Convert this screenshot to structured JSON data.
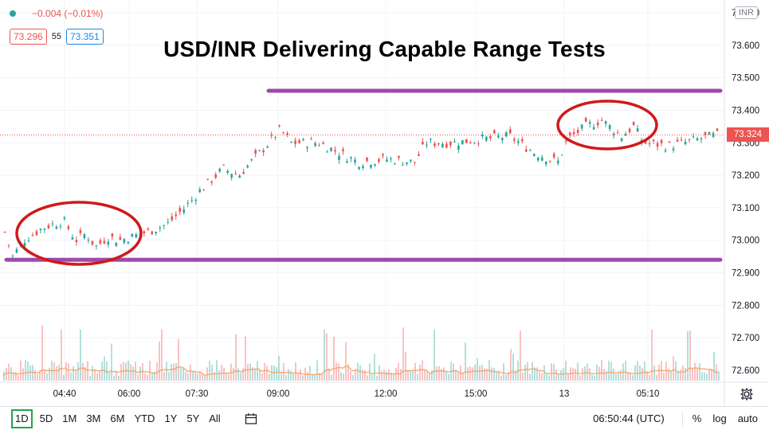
{
  "header": {
    "change": "−0.004 (−0.01%)",
    "bid": "73.296",
    "spread": "55",
    "ask": "73.351",
    "currency": "INR"
  },
  "title": "USD/INR Delivering Capable Range Tests",
  "last_price_label": "73.324",
  "colors": {
    "up": "#26a69a",
    "down": "#ef5350",
    "annotation_line": "#9c4bab",
    "annotation_circle": "#d01919",
    "volume_ma": "#f4a460"
  },
  "bottom_bar": {
    "ranges": [
      "1D",
      "5D",
      "1M",
      "3M",
      "6M",
      "YTD",
      "1Y",
      "5Y",
      "All"
    ],
    "active_range": "1D",
    "clock": "06:50:44 (UTC)",
    "options": [
      "%",
      "log",
      "auto"
    ]
  },
  "chart_data": {
    "type": "candlestick",
    "title": "USD/INR Delivering Capable Range Tests",
    "y_ticks": [
      72.6,
      72.7,
      72.8,
      72.9,
      73.0,
      73.1,
      73.2,
      73.3,
      73.4,
      73.5,
      73.6,
      73.7
    ],
    "y_tick_labels": [
      "72.600",
      "72.700",
      "72.800",
      "72.900",
      "73.000",
      "73.100",
      "73.200",
      "73.300",
      "73.400",
      "73.500",
      "73.600",
      "73.700"
    ],
    "ylim": [
      72.55,
      73.75
    ],
    "x_ticks": [
      "04:40",
      "06:00",
      "07:30",
      "09:00",
      "12:00",
      "15:00",
      "13",
      "05:10"
    ],
    "price_path": [
      {
        "t": "03:45",
        "p": 73.04
      },
      {
        "t": "04:00",
        "p": 72.95
      },
      {
        "t": "04:10",
        "p": 73.0
      },
      {
        "t": "04:25",
        "p": 73.04
      },
      {
        "t": "04:40",
        "p": 73.06
      },
      {
        "t": "04:50",
        "p": 73.0
      },
      {
        "t": "05:00",
        "p": 73.02
      },
      {
        "t": "05:10",
        "p": 72.98
      },
      {
        "t": "05:25",
        "p": 73.01
      },
      {
        "t": "05:40",
        "p": 73.0
      },
      {
        "t": "06:00",
        "p": 73.01
      },
      {
        "t": "06:20",
        "p": 73.03
      },
      {
        "t": "06:40",
        "p": 73.05
      },
      {
        "t": "07:00",
        "p": 73.1
      },
      {
        "t": "07:30",
        "p": 73.15
      },
      {
        "t": "08:00",
        "p": 73.22
      },
      {
        "t": "08:20",
        "p": 73.2
      },
      {
        "t": "08:40",
        "p": 73.28
      },
      {
        "t": "09:00",
        "p": 73.34
      },
      {
        "t": "09:20",
        "p": 73.3
      },
      {
        "t": "10:00",
        "p": 73.3
      },
      {
        "t": "11:00",
        "p": 73.24
      },
      {
        "t": "12:00",
        "p": 73.25
      },
      {
        "t": "13:00",
        "p": 73.24
      },
      {
        "t": "13:30",
        "p": 73.3
      },
      {
        "t": "14:30",
        "p": 73.3
      },
      {
        "t": "15:00",
        "p": 73.31
      },
      {
        "t": "16:00",
        "p": 73.32
      },
      {
        "t": "16:30",
        "p": 73.27
      },
      {
        "t": "17:00",
        "p": 73.24
      },
      {
        "t": "13 00:00",
        "p": 73.31
      },
      {
        "t": "13 01:00",
        "p": 73.35
      },
      {
        "t": "13 02:00",
        "p": 73.37
      },
      {
        "t": "13 03:00",
        "p": 73.32
      },
      {
        "t": "13 03:30",
        "p": 73.35
      },
      {
        "t": "13 04:00",
        "p": 73.3
      },
      {
        "t": "13 05:10",
        "p": 73.29
      },
      {
        "t": "13 06:00",
        "p": 73.31
      },
      {
        "t": "13 06:50",
        "p": 73.324
      }
    ],
    "horizontal_lines": [
      {
        "price": 73.46,
        "from_time": "09:00",
        "color": "#9c4bab"
      },
      {
        "price": 72.94,
        "from_time": "03:45",
        "color": "#9c4bab"
      }
    ],
    "annotations": [
      "circle around 04:40–05:40 lows near 73.000",
      "circle around 13 01:00–03:30 highs near 73.380"
    ],
    "legend": "none",
    "grid": true
  }
}
